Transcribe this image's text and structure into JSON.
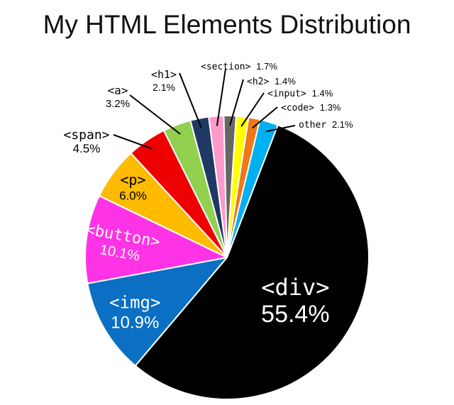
{
  "chart_data": {
    "type": "pie",
    "title": "My HTML Elements Distribution",
    "slices": [
      {
        "label": "<div>",
        "value": 55.4,
        "display": "55.4%",
        "color": "#000000"
      },
      {
        "label": "<img>",
        "value": 10.9,
        "display": "10.9%",
        "color": "#0b6fc4"
      },
      {
        "label": "<button>",
        "value": 10.1,
        "display": "10.1%",
        "color": "#ff33e6"
      },
      {
        "label": "<p>",
        "value": 6.0,
        "display": "6.0%",
        "color": "#ffbb00"
      },
      {
        "label": "<span>",
        "value": 4.5,
        "display": "4.5%",
        "color": "#ee0000"
      },
      {
        "label": "<a>",
        "value": 3.2,
        "display": "3.2%",
        "color": "#92d050"
      },
      {
        "label": "<h1>",
        "value": 2.1,
        "display": "2.1%",
        "color": "#1f3864"
      },
      {
        "label": "<section>",
        "value": 1.7,
        "display": "1.7%",
        "color": "#ff99cc"
      },
      {
        "label": "<h2>",
        "value": 1.4,
        "display": "1.4%",
        "color": "#666666"
      },
      {
        "label": "<input>",
        "value": 1.4,
        "display": "1.4%",
        "color": "#ffff00"
      },
      {
        "label": "<code>",
        "value": 1.3,
        "display": "1.3%",
        "color": "#f07818"
      },
      {
        "label": "other",
        "value": 2.1,
        "display": "2.1%",
        "color": "#00b0f0"
      }
    ]
  }
}
